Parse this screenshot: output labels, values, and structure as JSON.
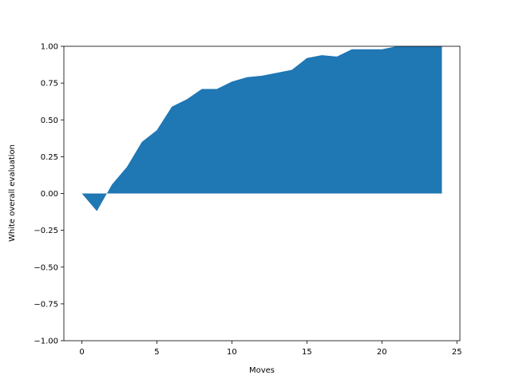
{
  "chart_data": {
    "type": "area",
    "title": "",
    "xlabel": "Moves",
    "ylabel": "White overall evaluation",
    "xlim": [
      -1.2,
      25.2
    ],
    "ylim": [
      -1.0,
      1.0
    ],
    "xticks": [
      0,
      5,
      10,
      15,
      20,
      25
    ],
    "xtick_labels": [
      "0",
      "5",
      "10",
      "15",
      "20",
      "25"
    ],
    "yticks": [
      -1.0,
      -0.75,
      -0.5,
      -0.25,
      0.0,
      0.25,
      0.5,
      0.75,
      1.0
    ],
    "ytick_labels": [
      "−1.00",
      "−0.75",
      "−0.50",
      "−0.25",
      "0.00",
      "0.25",
      "0.50",
      "0.75",
      "1.00"
    ],
    "grid": false,
    "legend": "none",
    "series": [
      {
        "color": "#1f77b4",
        "x": [
          0,
          1,
          2,
          3,
          4,
          5,
          6,
          7,
          8,
          9,
          10,
          11,
          12,
          13,
          14,
          15,
          16,
          17,
          18,
          19,
          20,
          21,
          22,
          23,
          24
        ],
        "y": [
          0.0,
          -0.12,
          0.06,
          0.18,
          0.35,
          0.43,
          0.59,
          0.64,
          0.71,
          0.71,
          0.76,
          0.79,
          0.8,
          0.82,
          0.84,
          0.92,
          0.94,
          0.93,
          0.98,
          0.98,
          0.98,
          1.0,
          1.0,
          1.0,
          1.0
        ]
      }
    ]
  }
}
